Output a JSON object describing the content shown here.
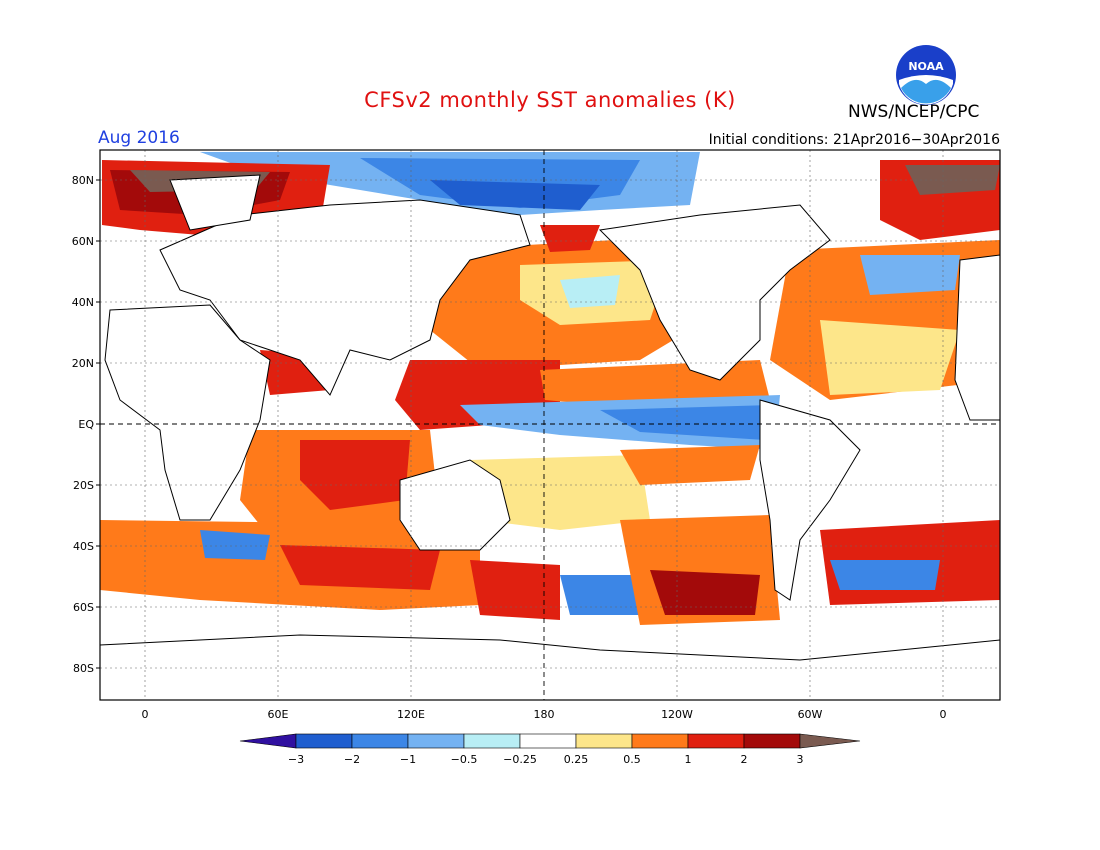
{
  "header": {
    "title": "CFSv2 monthly SST anomalies (K)",
    "agency": "NWS/NCEP/CPC",
    "month": "Aug 2016",
    "initial_conditions": "Initial conditions: 21Apr2016−30Apr2016",
    "logo_text": "NOAA"
  },
  "map": {
    "lat_labels": [
      "80N",
      "60N",
      "40N",
      "20N",
      "EQ",
      "20S",
      "40S",
      "60S",
      "80S"
    ],
    "lon_labels": [
      "0",
      "60E",
      "120E",
      "180",
      "120W",
      "60W",
      "0"
    ]
  },
  "colorbar": {
    "labels": [
      "−3",
      "−2",
      "−1",
      "−0.5",
      "−0.25",
      "0.25",
      "0.5",
      "1",
      "2",
      "3"
    ],
    "colors": [
      "#3010a0",
      "#1f5ecf",
      "#3c86e6",
      "#74b2f2",
      "#b8eef5",
      "#ffffff",
      "#fde68a",
      "#ff7a1a",
      "#e02010",
      "#a30a0a",
      "#7a5a50"
    ]
  },
  "colors": {
    "ocean_neutral": "#ffffff",
    "warm_light": "#fde68a",
    "warm_mid": "#ff7a1a",
    "warm_strong": "#e02010",
    "warm_max": "#a30a0a",
    "cold_light": "#b8eef5",
    "cold_mid": "#74b2f2",
    "cold_strong": "#2f6fd6"
  }
}
